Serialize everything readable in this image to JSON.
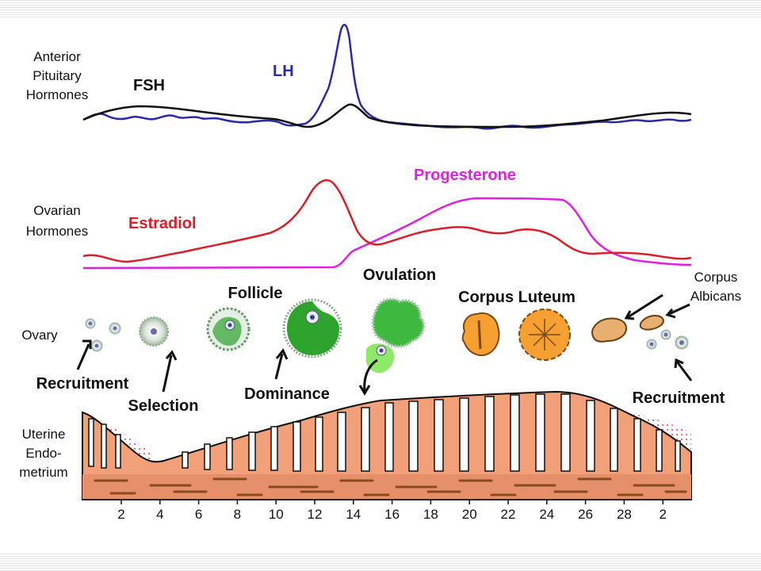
{
  "pituitary": {
    "section_label": [
      "Anterior",
      "Pituitary",
      "Hormones"
    ],
    "fsh_label": "FSH",
    "lh_label": "LH"
  },
  "ovarian": {
    "section_label": [
      "Ovarian",
      "Hormones"
    ],
    "estradiol_label": "Estradiol",
    "progesterone_label": "Progesterone"
  },
  "ovary": {
    "section_label": "Ovary",
    "follicle_label": "Follicle",
    "ovulation_label": "Ovulation",
    "corpus_luteum_label": "Corpus Luteum",
    "corpus_albicans_label": [
      "Corpus",
      "Albicans"
    ],
    "recruitment_label": "Recruitment",
    "selection_label": "Selection",
    "dominance_label": "Dominance",
    "recruitment2_label": "Recruitment"
  },
  "uterus": {
    "section_label": [
      "Uterine",
      "Endo-",
      "metrium"
    ]
  },
  "day_axis": [
    "2",
    "4",
    "6",
    "8",
    "10",
    "12",
    "14",
    "16",
    "18",
    "20",
    "22",
    "24",
    "26",
    "28",
    "2"
  ],
  "colors": {
    "fsh": "#111111",
    "lh": "#2a2aa8",
    "estradiol": "#d8202a",
    "progesterone": "#e020e0",
    "follicle_green": "#2ea42e",
    "corpus_orange": "#f5a030",
    "endometrium": "#f2a07a"
  }
}
